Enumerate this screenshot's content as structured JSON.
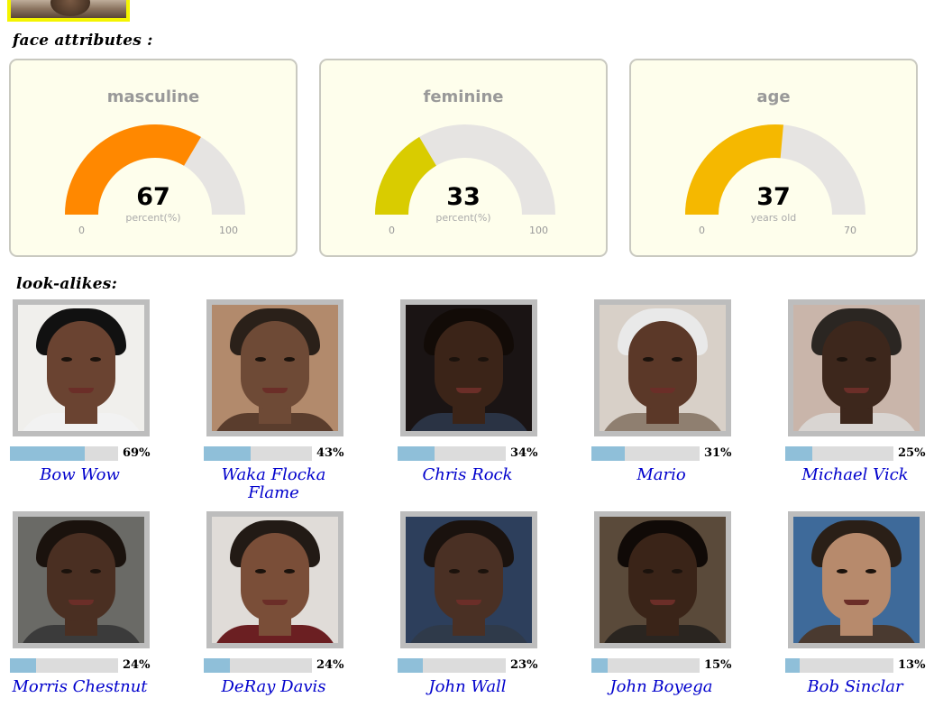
{
  "sections": {
    "face_attributes": "face attributes :",
    "look_alikes": "look-alikes:"
  },
  "colors": {
    "gauge_track": "#e6e4e2",
    "card_background": "#fefeec",
    "bar_fill": "#8fbfd9",
    "bar_track": "#dcdcdc",
    "link": "#0000cc",
    "highlight_border": "#f4f400"
  },
  "gauges": [
    {
      "title": "masculine",
      "value": 67,
      "unit": "percent(%)",
      "min": 0,
      "max": 100,
      "color": "#ff8800"
    },
    {
      "title": "feminine",
      "value": 33,
      "unit": "percent(%)",
      "min": 0,
      "max": 100,
      "color": "#d9cc00"
    },
    {
      "title": "age",
      "value": 37,
      "unit": "years old",
      "min": 0,
      "max": 70,
      "color": "#f5b800"
    }
  ],
  "lookalikes": [
    {
      "name": "Bow Wow",
      "similarity": 69,
      "pct_label": "69%",
      "skin": "#6a4331",
      "hair": "#111111",
      "bg": "#f0efec",
      "shirt": "#f2f2f2"
    },
    {
      "name": "Waka Flocka Flame",
      "similarity": 43,
      "pct_label": "43%",
      "skin": "#6e4a36",
      "hair": "#2a2019",
      "bg": "#b28a6c",
      "shirt": "#5a3d2d"
    },
    {
      "name": "Chris Rock",
      "similarity": 34,
      "pct_label": "34%",
      "skin": "#3b2418",
      "hair": "#120b07",
      "bg": "#1a1414",
      "shirt": "#2a3344"
    },
    {
      "name": "Mario",
      "similarity": 31,
      "pct_label": "31%",
      "skin": "#5b3828",
      "hair": "#e9e9e9",
      "bg": "#d8d0c8",
      "shirt": "#8f7f70"
    },
    {
      "name": "Michael Vick",
      "similarity": 25,
      "pct_label": "25%",
      "skin": "#3d271c",
      "hair": "#2b2622",
      "bg": "#c9b5aa",
      "shirt": "#d9d5d2"
    },
    {
      "name": "Morris Chestnut",
      "similarity": 24,
      "pct_label": "24%",
      "skin": "#4a2f22",
      "hair": "#1a120d",
      "bg": "#6a6a66",
      "shirt": "#3b3b3b"
    },
    {
      "name": "DeRay Davis",
      "similarity": 24,
      "pct_label": "24%",
      "skin": "#7a4e38",
      "hair": "#221a15",
      "bg": "#e0dcd8",
      "shirt": "#6b1f22"
    },
    {
      "name": "John Wall",
      "similarity": 23,
      "pct_label": "23%",
      "skin": "#4a3024",
      "hair": "#1a120e",
      "bg": "#2d3f5c",
      "shirt": "#2f3a4a"
    },
    {
      "name": "John Boyega",
      "similarity": 15,
      "pct_label": "15%",
      "skin": "#3a2418",
      "hair": "#100a07",
      "bg": "#5a4a3a",
      "shirt": "#2a2520"
    },
    {
      "name": "Bob Sinclar",
      "similarity": 13,
      "pct_label": "13%",
      "skin": "#b78a6c",
      "hair": "#2a1f17",
      "bg": "#3e6a9a",
      "shirt": "#4a3a30"
    }
  ]
}
